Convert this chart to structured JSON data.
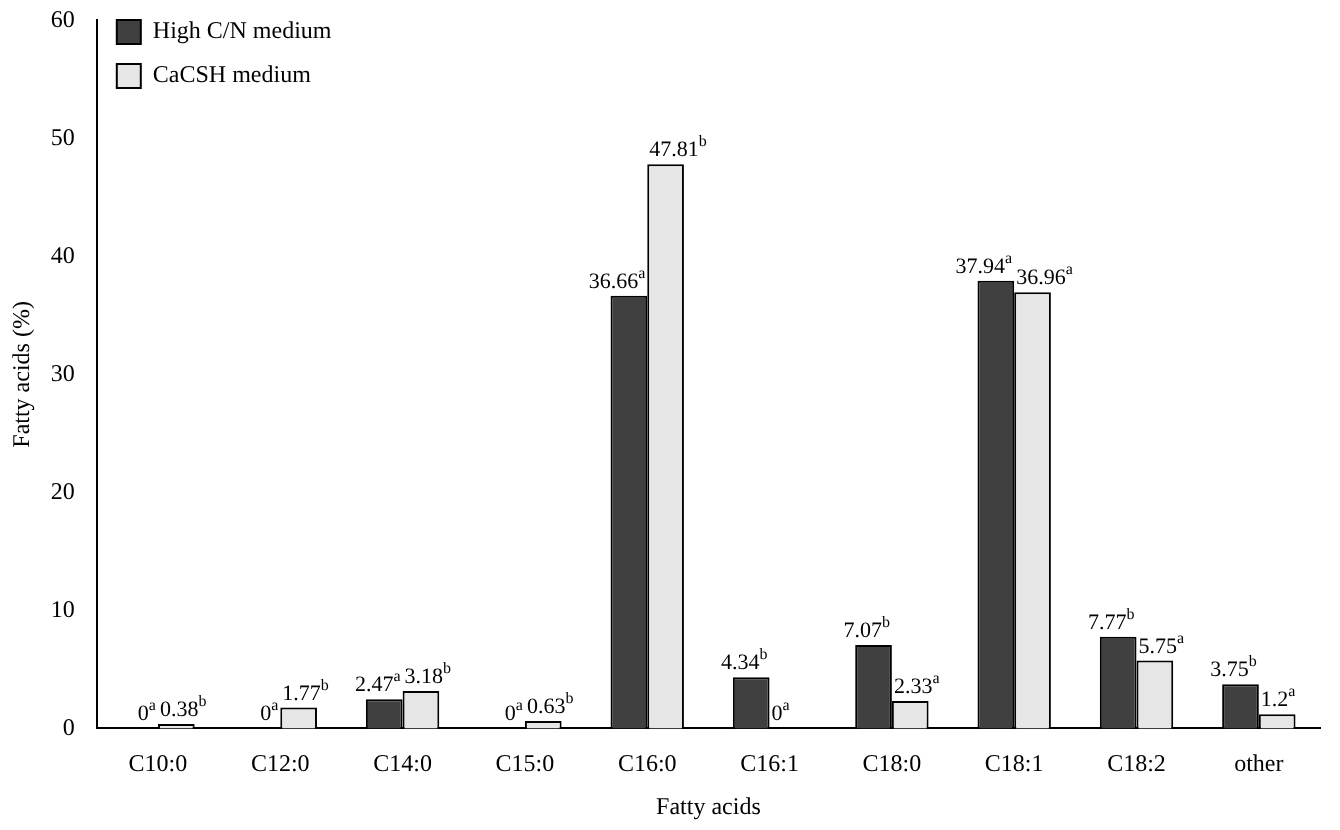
{
  "chart_data": {
    "type": "bar",
    "xlabel": "Fatty acids",
    "ylabel": "Fatty acids (%)",
    "categories": [
      "C10:0",
      "C12:0",
      "C14:0",
      "C15:0",
      "C16:0",
      "C16:1",
      "C18:0",
      "C18:1",
      "C18:2",
      "other"
    ],
    "series": [
      {
        "name": "High C/N medium",
        "color": "#404040",
        "values": [
          0,
          0,
          2.47,
          0,
          36.66,
          4.34,
          7.07,
          37.94,
          7.77,
          3.75
        ],
        "value_labels": [
          "0$^{a}$",
          "0$^{a}$",
          "2.47$^{a}$",
          "0$^{a}$",
          "36.66$^{a}$",
          "4.34$^{b}$",
          "7.07$^{b}$",
          "37.94$^{a}$",
          "7.77$^{b}$",
          "3.75$^{b}$"
        ]
      },
      {
        "name": "CaCSH medium",
        "color": "#e6e6e6",
        "values": [
          0.38,
          1.77,
          3.18,
          0.63,
          47.81,
          0,
          2.33,
          36.96,
          5.75,
          1.2
        ],
        "value_labels": [
          "0.38$^{b}$",
          "1.77$^{b}$",
          "3.18$^{b}$",
          "0.63$^{b}$",
          "47.81$^{b}$",
          "0$^{a}$",
          "2.33$^{a}$",
          "36.96$^{a}$",
          "5.75$^{a}$",
          "1.2$^{a}$"
        ]
      }
    ],
    "ylim": [
      0,
      60
    ],
    "yticks": [
      0,
      10,
      20,
      30,
      40,
      50,
      60
    ],
    "grid": false,
    "legend": "top left"
  }
}
